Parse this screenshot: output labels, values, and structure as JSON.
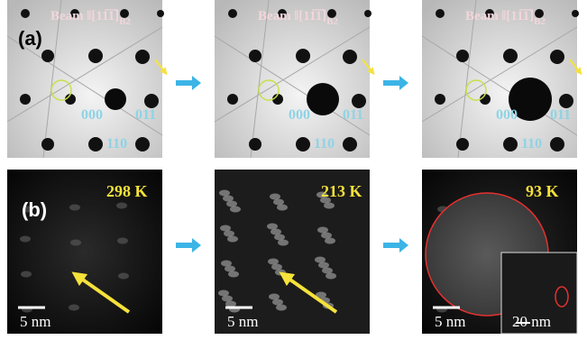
{
  "panel_a": {
    "label": "(a)",
    "images": [
      {
        "beam": "Beam ‖[11̅1̅]",
        "subscript": "B2",
        "spots": [
          "000",
          "011",
          "110"
        ]
      },
      {
        "beam": "Beam ‖[11̅1̅]",
        "subscript": "B2",
        "spots": [
          "000",
          "011",
          "110"
        ]
      },
      {
        "beam": "Beam ‖[11̅1̅]",
        "subscript": "B2",
        "spots": [
          "000",
          "011",
          "110"
        ]
      }
    ]
  },
  "panel_b": {
    "label": "(b)",
    "images": [
      {
        "temperature": "298 K",
        "scale_bar": "5 nm"
      },
      {
        "temperature": "213 K",
        "scale_bar": "5 nm"
      },
      {
        "temperature": "93 K",
        "scale_bar": "5 nm",
        "inset_scale_bar": "20 nm"
      }
    ]
  }
}
